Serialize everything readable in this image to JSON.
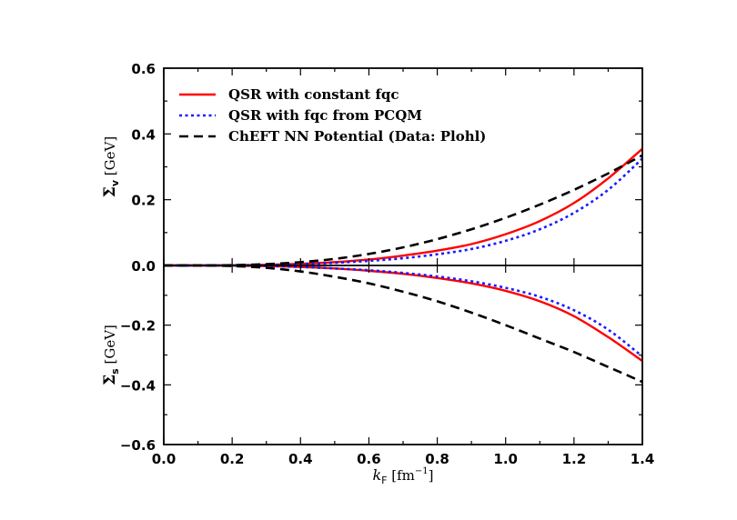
{
  "chart_data": {
    "type": "line",
    "panels": [
      {
        "name": "upper",
        "ylabel": "Σv [GeV]",
        "ylabel_symbol": "Σ",
        "ylabel_subscript": "v",
        "ylabel_unit": " [GeV]",
        "ylim": [
          0.0,
          0.6
        ],
        "yticks": [
          0.0,
          0.2,
          0.4,
          0.6
        ],
        "ytick_labels": [
          "0.0",
          "0.2",
          "0.4",
          "0.6"
        ]
      },
      {
        "name": "lower",
        "ylabel": "Σs [GeV]",
        "ylabel_symbol": "Σ",
        "ylabel_subscript": "s",
        "ylabel_unit": " [GeV]",
        "ylim": [
          -0.6,
          0.0
        ],
        "yticks": [
          -0.6,
          -0.4,
          -0.2
        ],
        "ytick_labels": [
          "−0.6",
          "−0.4",
          "−0.2"
        ]
      }
    ],
    "xlim": [
      0.0,
      1.4
    ],
    "xticks": [
      0.0,
      0.2,
      0.4,
      0.6,
      0.8,
      1.0,
      1.2,
      1.4
    ],
    "xtick_labels": [
      "0.0",
      "0.2",
      "0.4",
      "0.6",
      "0.8",
      "1.0",
      "1.2",
      "1.4"
    ],
    "xlabel": "kF [fm⁻¹]",
    "xlabel_symbol": "k",
    "xlabel_subscript": "F",
    "xlabel_unit_pre": " [fm",
    "xlabel_unit_sup": "−1",
    "xlabel_unit_post": "]",
    "legend_position": "top-left",
    "x": [
      0.0,
      0.1,
      0.2,
      0.3,
      0.4,
      0.5,
      0.6,
      0.7,
      0.8,
      0.9,
      1.0,
      1.1,
      1.2,
      1.3,
      1.4
    ],
    "series": [
      {
        "name": "QSR with constant fqc",
        "color": "#ff0000",
        "style": "solid",
        "sigma_v": [
          0.0,
          0.0,
          0.0005,
          0.002,
          0.005,
          0.01,
          0.018,
          0.03,
          0.045,
          0.065,
          0.095,
          0.135,
          0.19,
          0.265,
          0.355
        ],
        "sigma_s": [
          0.0,
          0.0,
          -0.0005,
          -0.002,
          -0.005,
          -0.01,
          -0.018,
          -0.028,
          -0.042,
          -0.06,
          -0.085,
          -0.12,
          -0.17,
          -0.24,
          -0.32
        ]
      },
      {
        "name": "QSR with fqc from PCQM",
        "color": "#1a1aff",
        "style": "dotted",
        "sigma_v": [
          0.0,
          0.0,
          0.0005,
          0.0015,
          0.004,
          0.008,
          0.014,
          0.022,
          0.034,
          0.05,
          0.075,
          0.11,
          0.16,
          0.23,
          0.325
        ],
        "sigma_s": [
          0.0,
          0.0,
          -0.0005,
          -0.002,
          -0.005,
          -0.01,
          -0.016,
          -0.025,
          -0.037,
          -0.053,
          -0.075,
          -0.105,
          -0.15,
          -0.215,
          -0.305
        ]
      },
      {
        "name": "ChEFT NN Potential (Data: Plohl)",
        "color": "#000000",
        "style": "dashed",
        "sigma_v": [
          0.0,
          0.0,
          0.001,
          0.004,
          0.01,
          0.02,
          0.035,
          0.055,
          0.08,
          0.11,
          0.145,
          0.185,
          0.23,
          0.28,
          0.335
        ],
        "sigma_s": [
          0.0,
          0.0,
          -0.002,
          -0.008,
          -0.02,
          -0.038,
          -0.06,
          -0.088,
          -0.12,
          -0.158,
          -0.2,
          -0.245,
          -0.29,
          -0.34,
          -0.39
        ]
      }
    ]
  }
}
